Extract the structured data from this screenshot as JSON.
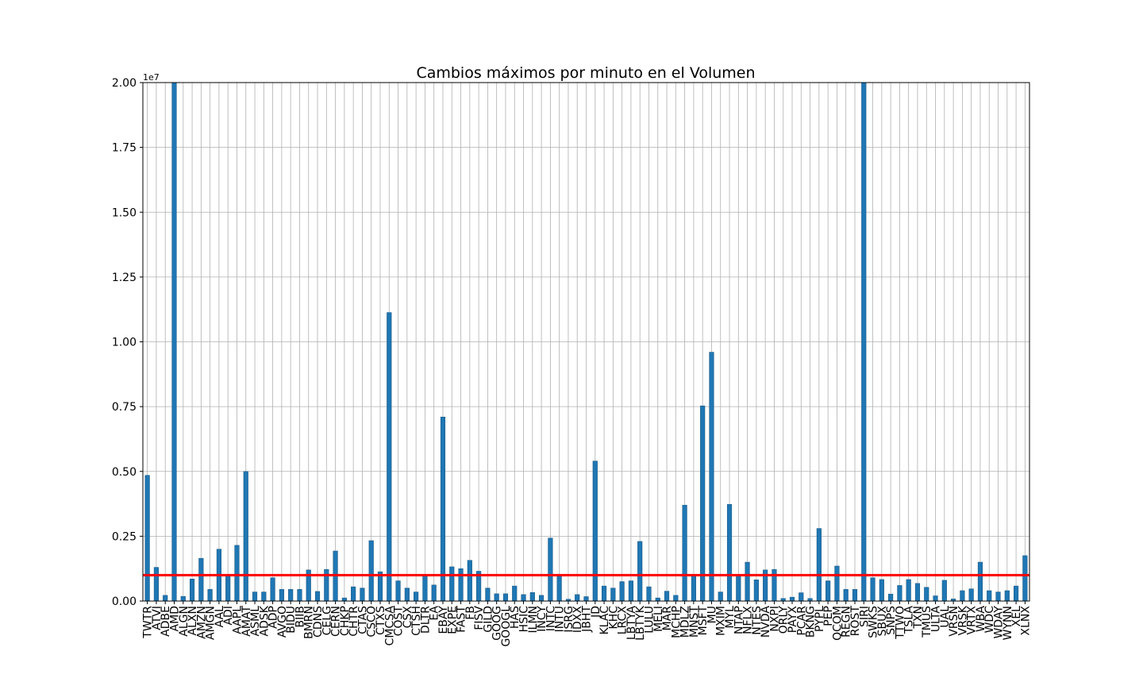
{
  "chart_data": {
    "type": "bar",
    "title": "Cambios máximos por minuto en el Volumen",
    "ylim": [
      0,
      2.0
    ],
    "y_offset_label": "1e7",
    "y_ticks": [
      "0.00",
      "0.25",
      "0.50",
      "0.75",
      "1.00",
      "1.25",
      "1.50",
      "1.75",
      "2.00"
    ],
    "grid": true,
    "bar_color": "#1f77b4",
    "threshold": {
      "value": 0.1,
      "color": "#ff0000"
    },
    "categories": [
      "TWTR",
      "ATVI",
      "ADBE",
      "AMD",
      "ALGN",
      "ALXN",
      "AMZN",
      "AMGN",
      "AAL",
      "ADI",
      "AAPL",
      "AMAT",
      "ASML",
      "ADSK",
      "ADP",
      "AVGO",
      "BIDU",
      "BIIB",
      "BMRN",
      "CDNS",
      "CELG",
      "CERN",
      "CHKP",
      "CHTR",
      "CTAS",
      "CSCO",
      "CTXS",
      "CMCSA",
      "COST",
      "CSX",
      "CTSH",
      "DLTR",
      "EA",
      "EBAY",
      "EXPE",
      "FAST",
      "FB",
      "FISV",
      "GILD",
      "GOOG",
      "GOOGL",
      "HAS",
      "HSIC",
      "ILMN",
      "INCY",
      "INTC",
      "INTU",
      "ISRG",
      "IDXX",
      "JBHT",
      "JD",
      "KLAC",
      "KHC",
      "LRCX",
      "LBTYA",
      "LBTYK",
      "LULU",
      "MELI",
      "MAR",
      "MCHP",
      "MDLZ",
      "MNST",
      "MSFT",
      "MU",
      "MXIM",
      "MYL",
      "NTAP",
      "NFLX",
      "NTES",
      "NVDA",
      "NXPI",
      "ORLY",
      "PAYX",
      "PCAR",
      "BKNG",
      "PYPL",
      "PEP",
      "QCOM",
      "REGN",
      "ROST",
      "SIRI",
      "SWKS",
      "SBUX",
      "SNPS",
      "TTWO",
      "TSLA",
      "TXN",
      "TMUS",
      "ULTA",
      "UAL",
      "VRSN",
      "VRSK",
      "VRTX",
      "WBA",
      "WDC",
      "WDAY",
      "WYNN",
      "XEL",
      "XLNX"
    ],
    "values": [
      0.485,
      0.13,
      0.022,
      2.0,
      0.018,
      0.085,
      0.165,
      0.045,
      0.2,
      0.1,
      0.215,
      0.5,
      0.035,
      0.035,
      0.09,
      0.045,
      0.045,
      0.045,
      0.12,
      0.037,
      0.122,
      0.193,
      0.012,
      0.055,
      0.05,
      0.233,
      0.113,
      1.113,
      0.078,
      0.05,
      0.035,
      0.098,
      0.062,
      0.71,
      0.132,
      0.125,
      0.157,
      0.115,
      0.05,
      0.028,
      0.028,
      0.058,
      0.025,
      0.033,
      0.022,
      0.243,
      0.097,
      0.007,
      0.025,
      0.017,
      0.54,
      0.058,
      0.05,
      0.075,
      0.078,
      0.23,
      0.055,
      0.012,
      0.038,
      0.022,
      0.37,
      0.098,
      0.753,
      0.96,
      0.035,
      0.373,
      0.098,
      0.15,
      0.082,
      0.12,
      0.122,
      0.01,
      0.015,
      0.032,
      0.01,
      0.28,
      0.078,
      0.135,
      0.045,
      0.045,
      2.0,
      0.09,
      0.083,
      0.027,
      0.06,
      0.083,
      0.068,
      0.053,
      0.02,
      0.08,
      0.008,
      0.04,
      0.047,
      0.15,
      0.04,
      0.035,
      0.04,
      0.058,
      0.175
    ]
  }
}
